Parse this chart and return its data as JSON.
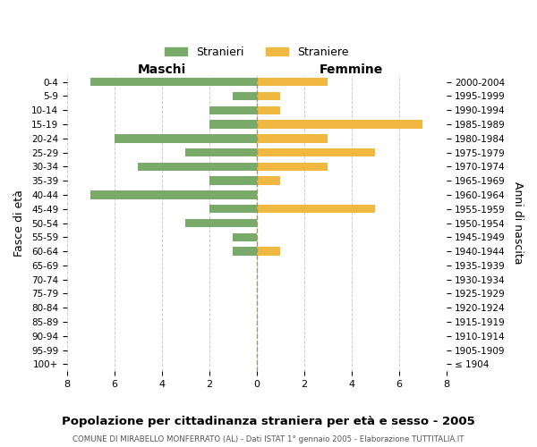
{
  "age_groups": [
    "100+",
    "95-99",
    "90-94",
    "85-89",
    "80-84",
    "75-79",
    "70-74",
    "65-69",
    "60-64",
    "55-59",
    "50-54",
    "45-49",
    "40-44",
    "35-39",
    "30-34",
    "25-29",
    "20-24",
    "15-19",
    "10-14",
    "5-9",
    "0-4"
  ],
  "birth_years": [
    "≤ 1904",
    "1905-1909",
    "1910-1914",
    "1915-1919",
    "1920-1924",
    "1925-1929",
    "1930-1934",
    "1935-1939",
    "1940-1944",
    "1945-1949",
    "1950-1954",
    "1955-1959",
    "1960-1964",
    "1965-1969",
    "1970-1974",
    "1975-1979",
    "1980-1984",
    "1985-1989",
    "1990-1994",
    "1995-1999",
    "2000-2004"
  ],
  "maschi": [
    0,
    0,
    0,
    0,
    0,
    0,
    0,
    0,
    1,
    1,
    3,
    2,
    7,
    2,
    5,
    3,
    6,
    2,
    2,
    1,
    7
  ],
  "femmine": [
    0,
    0,
    0,
    0,
    0,
    0,
    0,
    0,
    1,
    0,
    0,
    5,
    0,
    1,
    3,
    5,
    3,
    7,
    1,
    1,
    3
  ],
  "color_maschi": "#7aaa6a",
  "color_femmine": "#f0b840",
  "title_main": "Popolazione per cittadinanza straniera per età e sesso - 2005",
  "title_sub": "COMUNE DI MIRABELLO MONFERRATO (AL) - Dati ISTAT 1° gennaio 2005 - Elaborazione TUTTITALIA.IT",
  "label_maschi": "Maschi",
  "label_femmine": "Femmine",
  "legend_stranieri": "Stranieri",
  "legend_straniere": "Straniere",
  "ylabel_left": "Fasce di età",
  "ylabel_right": "Anni di nascita",
  "xlim": 8,
  "background_color": "#ffffff",
  "grid_color": "#cccccc"
}
